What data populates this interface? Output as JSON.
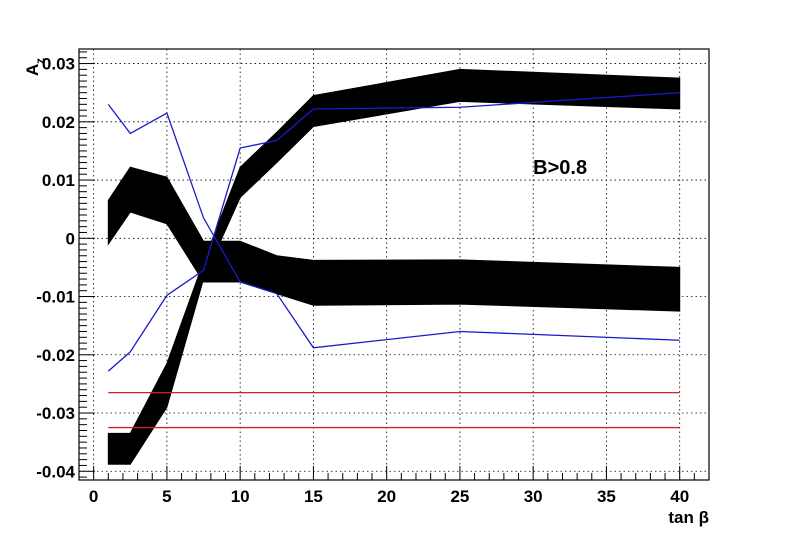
{
  "chart_data": {
    "type": "line",
    "title": "",
    "xlabel": "tan β",
    "ylabel": "A",
    "ylabel_sub": "z",
    "xlim": [
      -1,
      42
    ],
    "ylim": [
      -0.0415,
      0.0325
    ],
    "grid": true,
    "x_ticks": [
      0,
      5,
      10,
      15,
      20,
      25,
      30,
      35,
      40
    ],
    "x_tick_labels": [
      "0",
      "5",
      "10",
      "15",
      "20",
      "25",
      "30",
      "35",
      "40"
    ],
    "y_ticks": [
      0.03,
      0.02,
      0.01,
      0,
      -0.01,
      -0.02,
      -0.03,
      -0.04
    ],
    "y_tick_labels": [
      "0.03",
      "0.02",
      "0.01",
      "0",
      "-0.01",
      "-0.02",
      "-0.03",
      "-0.04"
    ],
    "annotations": [
      {
        "text": "B>0.8",
        "x": 30,
        "y": 0.011
      }
    ],
    "bands": [
      {
        "color": "#000000",
        "x": [
          1,
          2.5,
          5,
          7.5,
          10,
          12.5,
          15,
          25,
          40
        ],
        "lower": [
          -0.001,
          0.0045,
          0.0025,
          -0.0075,
          -0.0075,
          -0.0095,
          -0.0115,
          -0.0113,
          -0.0125
        ],
        "upper": [
          0.0065,
          0.0122,
          0.0105,
          -0.0005,
          -0.0005,
          -0.003,
          -0.0038,
          -0.0037,
          -0.005
        ]
      },
      {
        "color": "#000000",
        "x": [
          1,
          2.5,
          5,
          7.5,
          10,
          12.5,
          15,
          25,
          40
        ],
        "lower": [
          -0.0388,
          -0.0388,
          -0.029,
          -0.007,
          0.007,
          0.013,
          0.0192,
          0.0235,
          0.0222
        ],
        "upper": [
          -0.0335,
          -0.0335,
          -0.0215,
          -0.004,
          0.0122,
          0.0182,
          0.0245,
          0.029,
          0.0275
        ]
      }
    ],
    "series": [
      {
        "color": "#1a1acc",
        "x": [
          1,
          2.5,
          5,
          7.5,
          10,
          12.5,
          15,
          25,
          40
        ],
        "y": [
          0.023,
          0.018,
          0.0215,
          0.0035,
          -0.0075,
          -0.0095,
          -0.0188,
          -0.016,
          -0.0175
        ]
      },
      {
        "color": "#1a1acc",
        "x": [
          1,
          2.5,
          5,
          7.5,
          10,
          12.5,
          15,
          25,
          40
        ],
        "y": [
          -0.0228,
          -0.0195,
          -0.0098,
          -0.0055,
          0.0155,
          0.0168,
          0.0222,
          0.0225,
          0.025
        ]
      },
      {
        "color": "#d42020",
        "x": [
          1,
          40
        ],
        "y": [
          -0.0265,
          -0.0265
        ]
      },
      {
        "color": "#d42020",
        "x": [
          1,
          40
        ],
        "y": [
          -0.0325,
          -0.0325
        ]
      }
    ]
  }
}
